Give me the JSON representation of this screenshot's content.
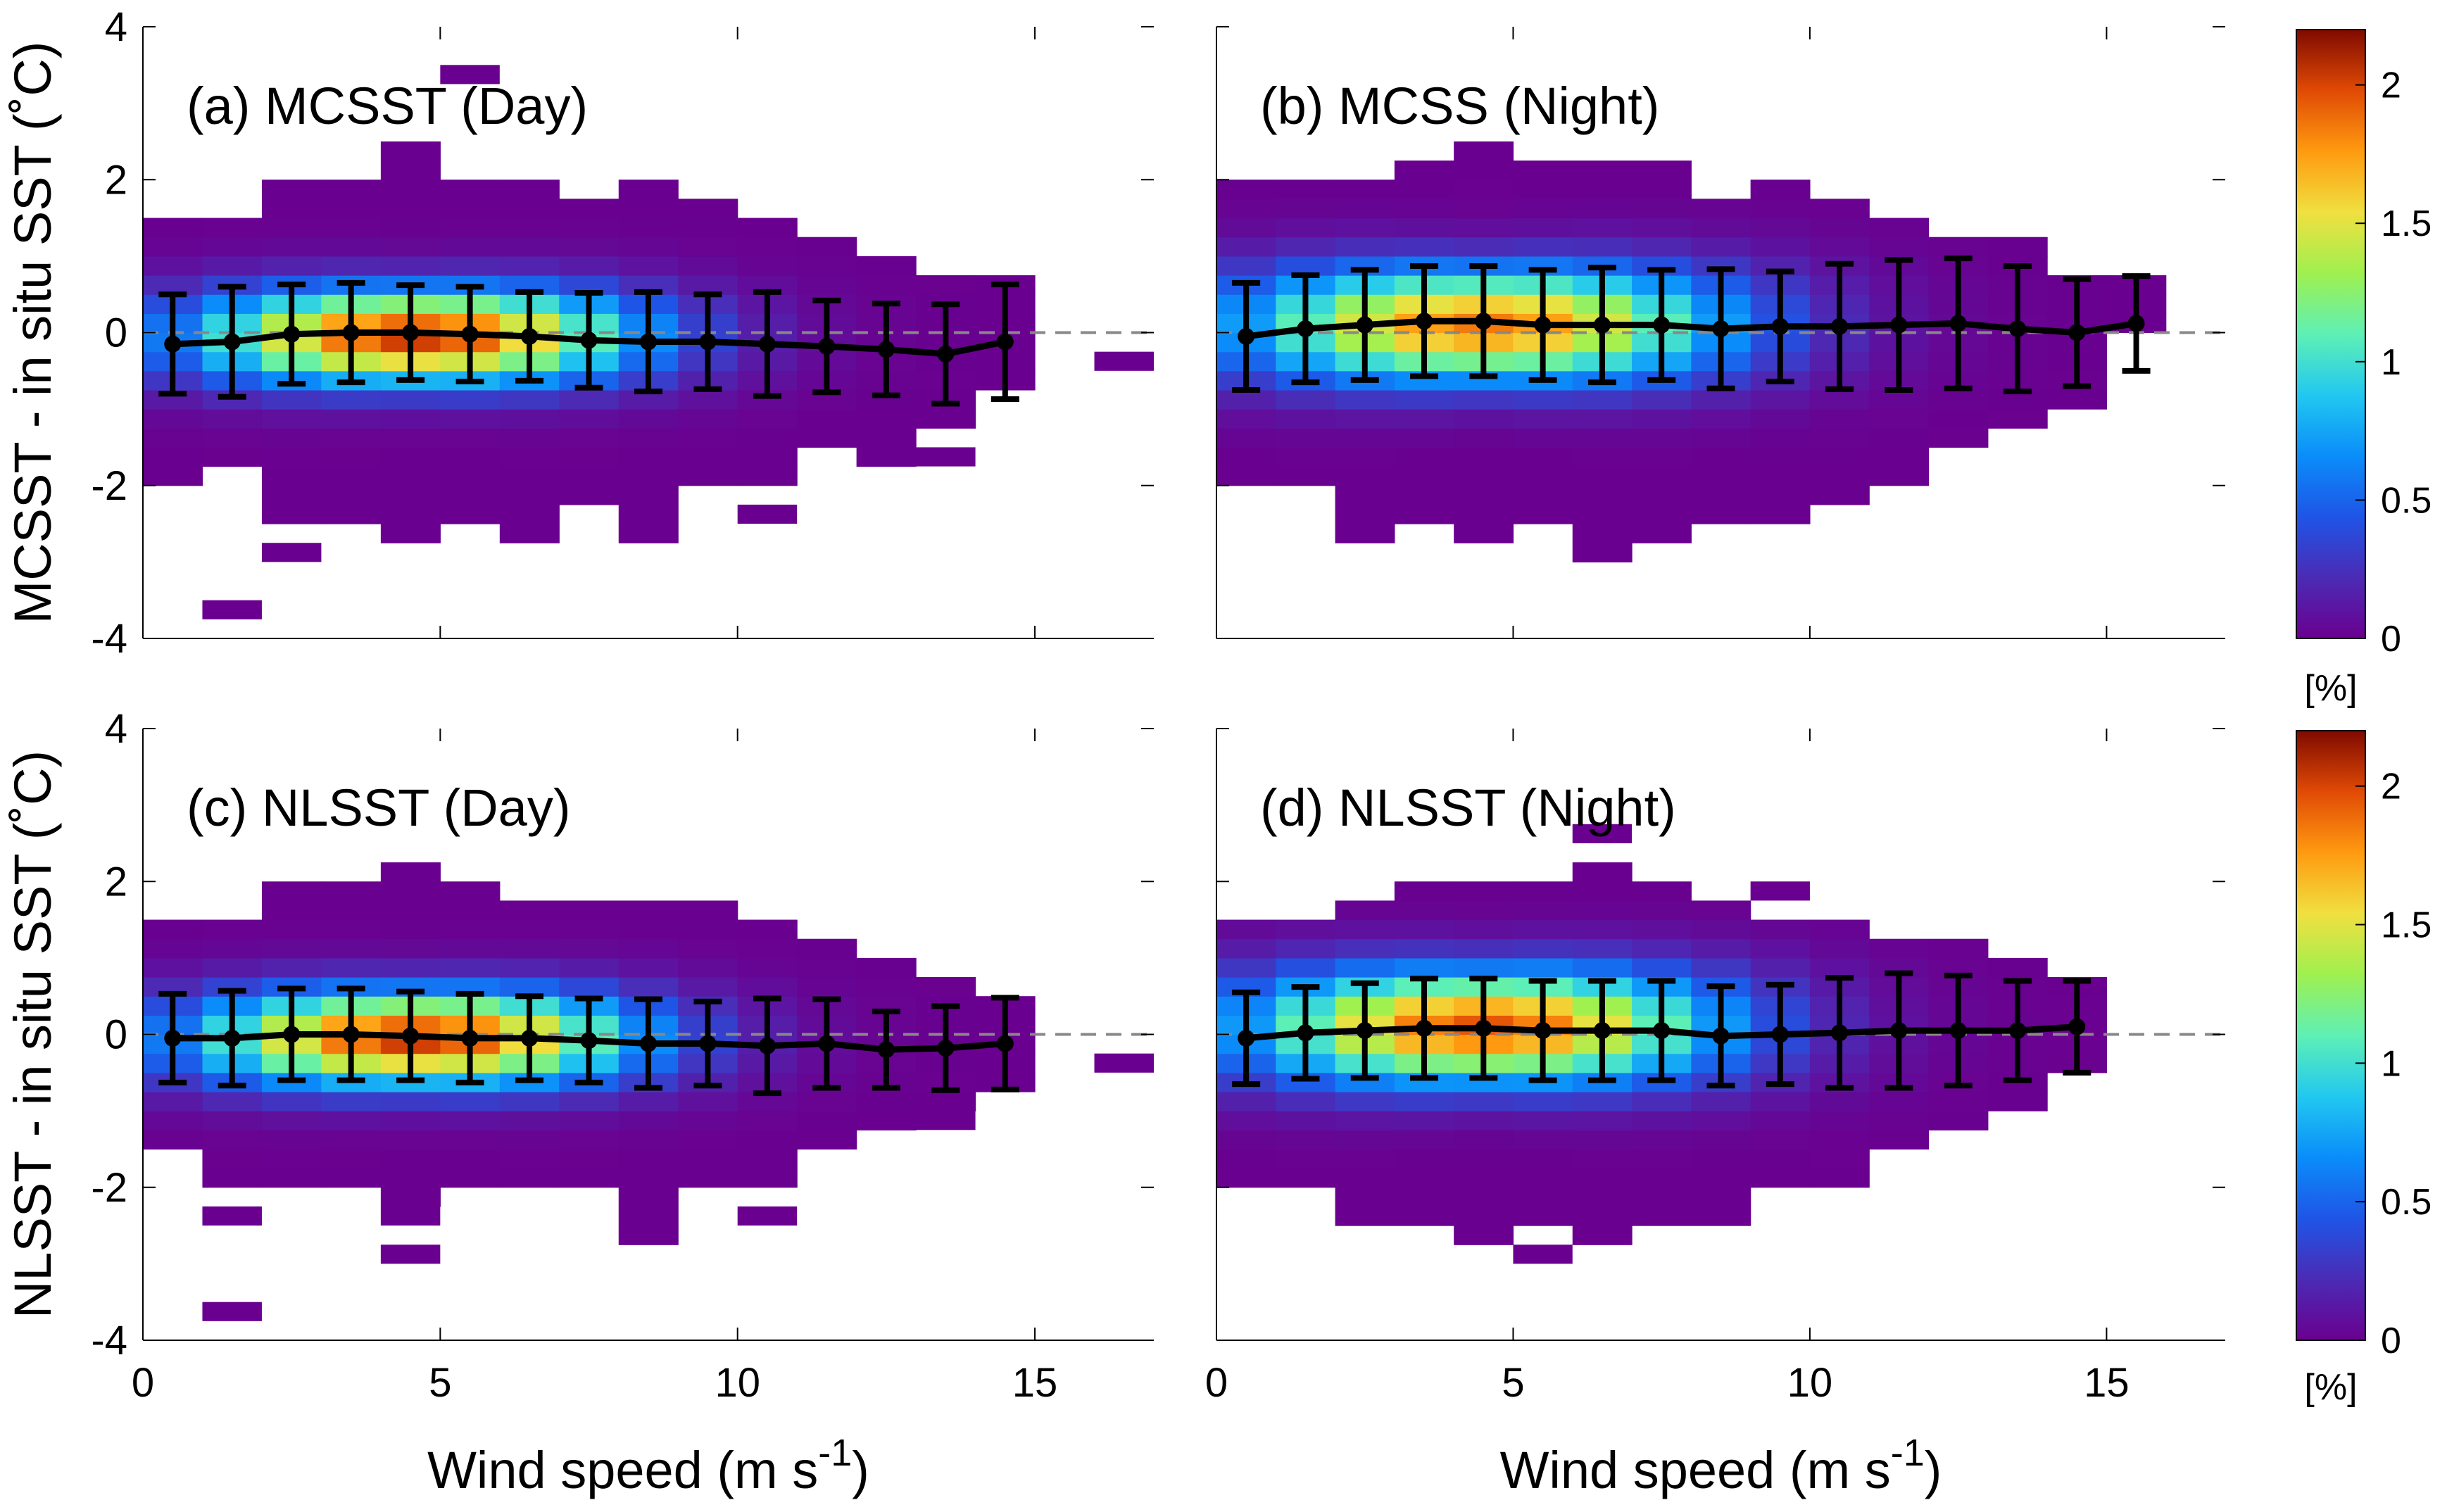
{
  "chart_data": [
    {
      "id": "a",
      "type": "heatmap",
      "title": "(a) MCSST (Day)",
      "ylabel": "MCSST - in situ SST (˚C)",
      "xlabel": "",
      "xlim": [
        0,
        17
      ],
      "ylim": [
        -4,
        4
      ],
      "xticks": [
        0,
        5,
        10,
        15
      ],
      "yticks": [
        -4,
        -2,
        0,
        2,
        4
      ],
      "bin_width_x": 1,
      "bin_height_y": 0.25,
      "reference_line_y": 0,
      "density": {
        "center_x": 4.6,
        "center_y": -0.05,
        "sigma_x": 2.6,
        "sigma_y": 0.42,
        "peak": 2.05,
        "sigma_growth": 0.03
      },
      "support": [
        {
          "x": 0.5,
          "ymin": -2.0,
          "ymax": 1.5
        },
        {
          "x": 1.5,
          "ymin": -1.75,
          "ymax": 1.5
        },
        {
          "x": 2.5,
          "ymin": -2.5,
          "ymax": 2.0
        },
        {
          "x": 3.5,
          "ymin": -2.5,
          "ymax": 2.0
        },
        {
          "x": 4.5,
          "ymin": -2.75,
          "ymax": 2.5
        },
        {
          "x": 5.5,
          "ymin": -2.5,
          "ymax": 2.0
        },
        {
          "x": 6.5,
          "ymin": -2.75,
          "ymax": 2.0
        },
        {
          "x": 7.5,
          "ymin": -2.25,
          "ymax": 1.75
        },
        {
          "x": 8.5,
          "ymin": -2.75,
          "ymax": 2.0
        },
        {
          "x": 9.5,
          "ymin": -2.0,
          "ymax": 1.75
        },
        {
          "x": 10.5,
          "ymin": -2.0,
          "ymax": 1.5
        },
        {
          "x": 11.5,
          "ymin": -1.5,
          "ymax": 1.25
        },
        {
          "x": 12.5,
          "ymin": -1.75,
          "ymax": 1.0
        },
        {
          "x": 13.5,
          "ymin": -1.25,
          "ymax": 0.75
        },
        {
          "x": 14.5,
          "ymin": -0.75,
          "ymax": 0.75
        }
      ],
      "isolated_cells": [
        {
          "x": 5.5,
          "y": 3.375
        },
        {
          "x": 1.5,
          "y": -3.625
        },
        {
          "x": 2.5,
          "y": -2.875
        },
        {
          "x": 10.5,
          "y": -2.375
        },
        {
          "x": 13.5,
          "y": -1.625
        },
        {
          "x": 16.5,
          "y": -0.375
        }
      ],
      "profile": {
        "x": [
          0.5,
          1.5,
          2.5,
          3.5,
          4.5,
          5.5,
          6.5,
          7.5,
          8.5,
          9.5,
          10.5,
          11.5,
          12.5,
          13.5,
          14.5
        ],
        "mean": [
          -0.15,
          -0.12,
          -0.02,
          0.0,
          0.0,
          -0.02,
          -0.05,
          -0.1,
          -0.12,
          -0.12,
          -0.15,
          -0.18,
          -0.22,
          -0.28,
          -0.12
        ],
        "sd": [
          0.65,
          0.72,
          0.65,
          0.65,
          0.62,
          0.62,
          0.58,
          0.62,
          0.65,
          0.62,
          0.68,
          0.6,
          0.6,
          0.65,
          0.75
        ]
      }
    },
    {
      "id": "b",
      "type": "heatmap",
      "title": "(b) MCSS (Night)",
      "ylabel": "",
      "xlabel": "",
      "xlim": [
        0,
        17
      ],
      "ylim": [
        -4,
        4
      ],
      "xticks": [
        0,
        5,
        10,
        15
      ],
      "yticks": [
        -4,
        -2,
        0,
        2,
        4
      ],
      "bin_width_x": 1,
      "bin_height_y": 0.25,
      "reference_line_y": 0,
      "density": {
        "center_x": 4.5,
        "center_y": 0.1,
        "sigma_x": 2.9,
        "sigma_y": 0.5,
        "peak": 1.85,
        "sigma_growth": 0.035
      },
      "support": [
        {
          "x": 0.5,
          "ymin": -2.0,
          "ymax": 2.0
        },
        {
          "x": 1.5,
          "ymin": -2.0,
          "ymax": 2.0
        },
        {
          "x": 2.5,
          "ymin": -2.75,
          "ymax": 2.0
        },
        {
          "x": 3.5,
          "ymin": -2.5,
          "ymax": 2.25
        },
        {
          "x": 4.5,
          "ymin": -2.75,
          "ymax": 2.5
        },
        {
          "x": 5.5,
          "ymin": -2.5,
          "ymax": 2.25
        },
        {
          "x": 6.5,
          "ymin": -3.0,
          "ymax": 2.25
        },
        {
          "x": 7.5,
          "ymin": -2.75,
          "ymax": 2.25
        },
        {
          "x": 8.5,
          "ymin": -2.5,
          "ymax": 1.75
        },
        {
          "x": 9.5,
          "ymin": -2.5,
          "ymax": 2.0
        },
        {
          "x": 10.5,
          "ymin": -2.25,
          "ymax": 1.75
        },
        {
          "x": 11.5,
          "ymin": -2.0,
          "ymax": 1.5
        },
        {
          "x": 12.5,
          "ymin": -1.5,
          "ymax": 1.25
        },
        {
          "x": 13.5,
          "ymin": -1.25,
          "ymax": 1.25
        },
        {
          "x": 14.5,
          "ymin": -1.0,
          "ymax": 0.75
        },
        {
          "x": 15.5,
          "ymin": 0.0,
          "ymax": 0.75
        }
      ],
      "isolated_cells": [],
      "profile": {
        "x": [
          0.5,
          1.5,
          2.5,
          3.5,
          4.5,
          5.5,
          6.5,
          7.5,
          8.5,
          9.5,
          10.5,
          11.5,
          12.5,
          13.5,
          14.5,
          15.5
        ],
        "mean": [
          -0.05,
          0.05,
          0.1,
          0.15,
          0.15,
          0.1,
          0.1,
          0.1,
          0.05,
          0.08,
          0.08,
          0.1,
          0.12,
          0.05,
          0.0,
          0.12
        ],
        "sd": [
          0.7,
          0.7,
          0.72,
          0.72,
          0.72,
          0.72,
          0.75,
          0.72,
          0.78,
          0.72,
          0.82,
          0.85,
          0.85,
          0.82,
          0.7,
          0.62
        ]
      }
    },
    {
      "id": "c",
      "type": "heatmap",
      "title": "(c) NLSST (Day)",
      "ylabel": "NLSST - in situ SST (˚C)",
      "xlabel": "Wind speed (m s-1)",
      "xlim": [
        0,
        17
      ],
      "ylim": [
        -4,
        4
      ],
      "xticks": [
        0,
        5,
        10,
        15
      ],
      "yticks": [
        -4,
        -2,
        0,
        2,
        4
      ],
      "bin_width_x": 1,
      "bin_height_y": 0.25,
      "reference_line_y": 0,
      "density": {
        "center_x": 4.6,
        "center_y": -0.05,
        "sigma_x": 2.6,
        "sigma_y": 0.42,
        "peak": 2.05,
        "sigma_growth": 0.03
      },
      "support": [
        {
          "x": 0.5,
          "ymin": -1.5,
          "ymax": 1.5
        },
        {
          "x": 1.5,
          "ymin": -2.0,
          "ymax": 1.5
        },
        {
          "x": 2.5,
          "ymin": -2.0,
          "ymax": 2.0
        },
        {
          "x": 3.5,
          "ymin": -2.0,
          "ymax": 2.0
        },
        {
          "x": 4.5,
          "ymin": -2.25,
          "ymax": 2.25
        },
        {
          "x": 5.5,
          "ymin": -2.0,
          "ymax": 2.0
        },
        {
          "x": 6.5,
          "ymin": -2.0,
          "ymax": 1.75
        },
        {
          "x": 7.5,
          "ymin": -2.0,
          "ymax": 1.75
        },
        {
          "x": 8.5,
          "ymin": -2.75,
          "ymax": 1.75
        },
        {
          "x": 9.5,
          "ymin": -2.0,
          "ymax": 1.75
        },
        {
          "x": 10.5,
          "ymin": -2.0,
          "ymax": 1.5
        },
        {
          "x": 11.5,
          "ymin": -1.5,
          "ymax": 1.25
        },
        {
          "x": 12.5,
          "ymin": -1.25,
          "ymax": 1.0
        },
        {
          "x": 13.5,
          "ymin": -1.0,
          "ymax": 0.75
        },
        {
          "x": 14.5,
          "ymin": -0.75,
          "ymax": 0.5
        }
      ],
      "isolated_cells": [
        {
          "x": 1.5,
          "y": -2.375
        },
        {
          "x": 1.5,
          "y": -3.625
        },
        {
          "x": 4.5,
          "y": -2.375
        },
        {
          "x": 4.5,
          "y": -2.875
        },
        {
          "x": 10.5,
          "y": -2.375
        },
        {
          "x": 13.5,
          "y": -1.125
        },
        {
          "x": 16.5,
          "y": -0.375
        }
      ],
      "profile": {
        "x": [
          0.5,
          1.5,
          2.5,
          3.5,
          4.5,
          5.5,
          6.5,
          7.5,
          8.5,
          9.5,
          10.5,
          11.5,
          12.5,
          13.5,
          14.5
        ],
        "mean": [
          -0.05,
          -0.05,
          0.0,
          0.0,
          -0.02,
          -0.05,
          -0.05,
          -0.08,
          -0.12,
          -0.12,
          -0.15,
          -0.12,
          -0.2,
          -0.18,
          -0.12
        ],
        "sd": [
          0.58,
          0.62,
          0.6,
          0.6,
          0.58,
          0.58,
          0.55,
          0.55,
          0.58,
          0.55,
          0.62,
          0.58,
          0.5,
          0.55,
          0.6
        ]
      }
    },
    {
      "id": "d",
      "type": "heatmap",
      "title": "(d) NLSST (Night)",
      "ylabel": "",
      "xlabel": "Wind speed (m s-1)",
      "xlim": [
        0,
        17
      ],
      "ylim": [
        -4,
        4
      ],
      "xticks": [
        0,
        5,
        10,
        15
      ],
      "yticks": [
        -4,
        -2,
        0,
        2,
        4
      ],
      "bin_width_x": 1,
      "bin_height_y": 0.25,
      "reference_line_y": 0,
      "density": {
        "center_x": 4.5,
        "center_y": 0.1,
        "sigma_x": 2.8,
        "sigma_y": 0.5,
        "peak": 1.95,
        "sigma_growth": 0.035
      },
      "support": [
        {
          "x": 0.5,
          "ymin": -2.0,
          "ymax": 1.5
        },
        {
          "x": 1.5,
          "ymin": -2.0,
          "ymax": 1.5
        },
        {
          "x": 2.5,
          "ymin": -2.5,
          "ymax": 1.75
        },
        {
          "x": 3.5,
          "ymin": -2.5,
          "ymax": 2.0
        },
        {
          "x": 4.5,
          "ymin": -2.75,
          "ymax": 2.0
        },
        {
          "x": 5.5,
          "ymin": -2.5,
          "ymax": 2.0
        },
        {
          "x": 6.5,
          "ymin": -2.75,
          "ymax": 2.25
        },
        {
          "x": 7.5,
          "ymin": -2.5,
          "ymax": 2.0
        },
        {
          "x": 8.5,
          "ymin": -2.5,
          "ymax": 1.75
        },
        {
          "x": 9.5,
          "ymin": -2.0,
          "ymax": 1.5
        },
        {
          "x": 10.5,
          "ymin": -2.0,
          "ymax": 1.5
        },
        {
          "x": 11.5,
          "ymin": -1.5,
          "ymax": 1.25
        },
        {
          "x": 12.5,
          "ymin": -1.25,
          "ymax": 1.25
        },
        {
          "x": 13.5,
          "ymin": -1.0,
          "ymax": 1.0
        },
        {
          "x": 14.5,
          "ymin": -0.5,
          "ymax": 0.75
        }
      ],
      "isolated_cells": [
        {
          "x": 6.5,
          "y": 2.625
        },
        {
          "x": 5.5,
          "y": -2.875
        },
        {
          "x": 9.5,
          "y": 1.875
        }
      ],
      "profile": {
        "x": [
          0.5,
          1.5,
          2.5,
          3.5,
          4.5,
          5.5,
          6.5,
          7.5,
          8.5,
          9.5,
          10.5,
          11.5,
          12.5,
          13.5,
          14.5
        ],
        "mean": [
          -0.05,
          0.02,
          0.05,
          0.08,
          0.08,
          0.05,
          0.05,
          0.05,
          -0.02,
          0.0,
          0.02,
          0.05,
          0.05,
          0.05,
          0.1
        ],
        "sd": [
          0.6,
          0.6,
          0.62,
          0.65,
          0.65,
          0.65,
          0.65,
          0.65,
          0.65,
          0.65,
          0.72,
          0.75,
          0.72,
          0.65,
          0.6
        ]
      }
    }
  ],
  "colorbars": [
    {
      "id": "top",
      "ticks": [
        0,
        0.5,
        1,
        1.5,
        2
      ],
      "range": [
        0,
        2.2
      ],
      "unit_label": "[%]"
    },
    {
      "id": "bottom",
      "ticks": [
        0,
        0.5,
        1,
        1.5,
        2
      ],
      "range": [
        0,
        2.2
      ],
      "unit_label": "[%]"
    }
  ],
  "colormap": [
    [
      0.0,
      "#6a008f"
    ],
    [
      0.1,
      "#4b2bb5"
    ],
    [
      0.2,
      "#1f55e6"
    ],
    [
      0.3,
      "#0a8dfa"
    ],
    [
      0.4,
      "#22c8f0"
    ],
    [
      0.5,
      "#5ef0b5"
    ],
    [
      0.6,
      "#9ff04f"
    ],
    [
      0.7,
      "#f0e040"
    ],
    [
      0.8,
      "#ff9a10"
    ],
    [
      0.9,
      "#e04a05"
    ],
    [
      1.0,
      "#7f0a00"
    ]
  ],
  "styles": {
    "reference_line_color": "#888888",
    "profile_color": "#000000"
  }
}
